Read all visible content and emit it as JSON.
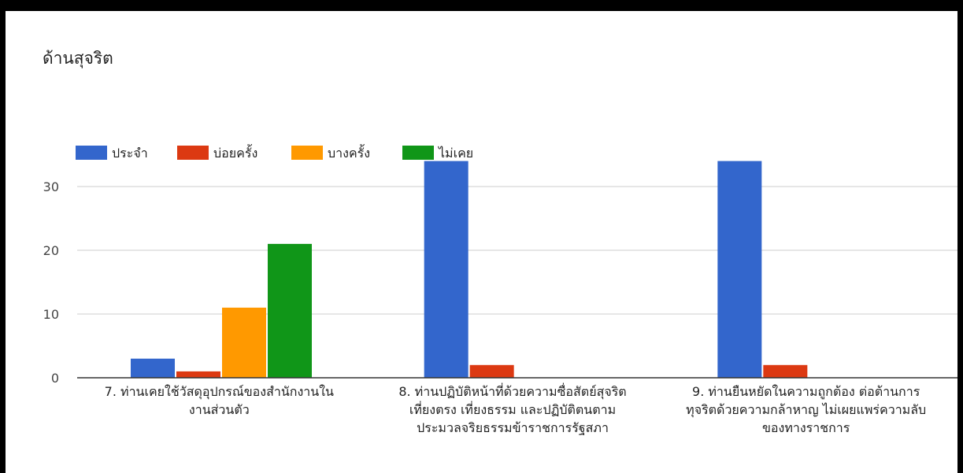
{
  "chart_data": {
    "type": "bar",
    "title": "ด้านสุจริต",
    "categories": [
      [
        "7. ท่านเคยใช้วัสดุอุปกรณ์ของสำนักงานใน",
        "งานส่วนตัว"
      ],
      [
        "8. ท่านปฏิบัติหน้าที่ด้วยความซื่อสัตย์สุจริต",
        "เที่ยงตรง เที่ยงธรรม และปฏิบัติตนตาม",
        "ประมวลจริยธรรมข้าราชการรัฐสภา"
      ],
      [
        "9. ท่านยืนหยัดในความถูกต้อง ต่อต้านการ",
        "ทุจริตด้วยความกล้าหาญ ไม่เผยแพร่ความลับ",
        "ของทางราชการ"
      ]
    ],
    "series": [
      {
        "name": "ประจำ",
        "color": "#3366cc",
        "values": [
          3,
          34,
          34
        ]
      },
      {
        "name": "บ่อยครั้ง",
        "color": "#dc3912",
        "values": [
          1,
          2,
          2
        ]
      },
      {
        "name": "บางครั้ง",
        "color": "#ff9900",
        "values": [
          11,
          0,
          0
        ]
      },
      {
        "name": "ไม่เคย",
        "color": "#109618",
        "values": [
          21,
          0,
          0
        ]
      }
    ],
    "yticks": [
      0,
      10,
      20,
      30
    ],
    "ylim": [
      0,
      35
    ],
    "grid": true,
    "legend": "top-left"
  }
}
